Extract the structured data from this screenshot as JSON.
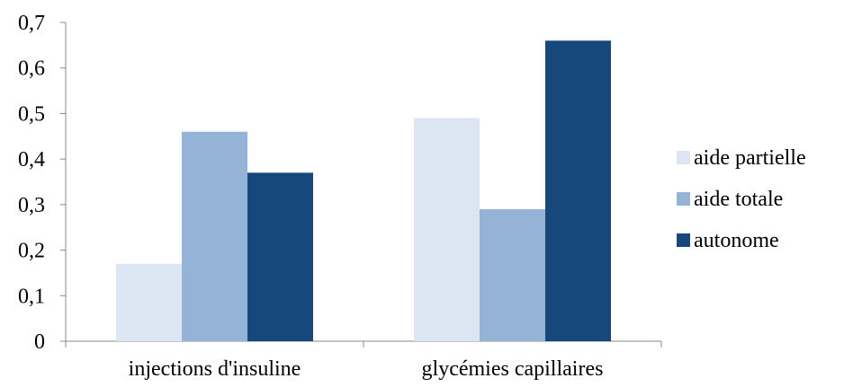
{
  "chart_data": {
    "type": "bar",
    "categories": [
      "injections d'insuline",
      "glycémies capillaires"
    ],
    "series": [
      {
        "name": "aide partielle",
        "values": [
          0.17,
          0.49
        ],
        "color": "#dce6f2"
      },
      {
        "name": "aide totale",
        "values": [
          0.46,
          0.29
        ],
        "color": "#95b3d7"
      },
      {
        "name": "autonome",
        "values": [
          0.37,
          0.66
        ],
        "color": "#17487b"
      }
    ],
    "ylim": [
      0,
      0.7
    ],
    "yticks": [
      "0",
      "0,1",
      "0,2",
      "0,3",
      "0,4",
      "0,5",
      "0,6",
      "0,7"
    ],
    "title": "",
    "xlabel": "",
    "ylabel": "",
    "grid": false,
    "legend": "right"
  }
}
